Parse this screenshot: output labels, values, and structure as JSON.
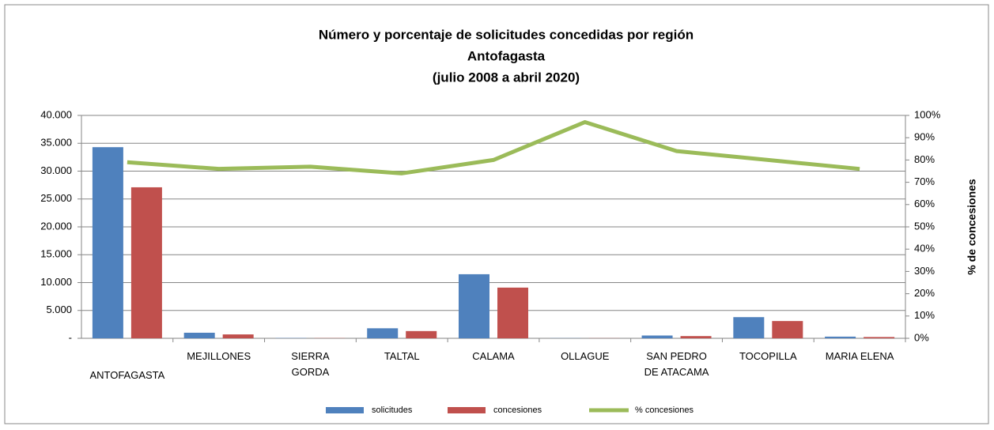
{
  "chart_data": {
    "type": "bar_line",
    "title": [
      "Número y porcentaje de solicitudes concedidas por región",
      "Antofagasta",
      "(julio 2008 a  abril 2020)"
    ],
    "categories": [
      "ANTOFAGASTA",
      "MEJILLONES",
      "SIERRA\nGORDA",
      "TALTAL",
      "CALAMA",
      "OLLAGUE",
      "SAN PEDRO\nDE ATACAMA",
      "TOCOPILLA",
      "MARIA ELENA"
    ],
    "series": [
      {
        "name": "solicitudes",
        "color": "#4f81bd",
        "type": "bar",
        "values": [
          34300,
          1000,
          50,
          1800,
          11500,
          30,
          500,
          3800,
          300
        ]
      },
      {
        "name": "concesiones",
        "color": "#c0504d",
        "type": "bar",
        "values": [
          27100,
          700,
          40,
          1300,
          9100,
          25,
          400,
          3100,
          230
        ]
      },
      {
        "name": "% concesiones",
        "color": "#9bbb59",
        "type": "line",
        "axis": "y2",
        "values": [
          79,
          76,
          77,
          74,
          80,
          97,
          84,
          80,
          76
        ]
      }
    ],
    "ylim": [
      0,
      40000
    ],
    "yticks": [
      {
        "value": 0,
        "label": "-"
      },
      {
        "value": 5000,
        "label": "5.000"
      },
      {
        "value": 10000,
        "label": "10.000"
      },
      {
        "value": 15000,
        "label": "15.000"
      },
      {
        "value": 20000,
        "label": "20.000"
      },
      {
        "value": 25000,
        "label": "25.000"
      },
      {
        "value": 30000,
        "label": "30.000"
      },
      {
        "value": 35000,
        "label": "35.000"
      },
      {
        "value": 40000,
        "label": "40.000"
      }
    ],
    "y2lim": [
      0,
      100
    ],
    "y2ticks": [
      {
        "value": 0,
        "label": "0%"
      },
      {
        "value": 10,
        "label": "10%"
      },
      {
        "value": 20,
        "label": "20%"
      },
      {
        "value": 30,
        "label": "30%"
      },
      {
        "value": 40,
        "label": "40%"
      },
      {
        "value": 50,
        "label": "50%"
      },
      {
        "value": 60,
        "label": "60%"
      },
      {
        "value": 70,
        "label": "70%"
      },
      {
        "value": 80,
        "label": "80%"
      },
      {
        "value": 90,
        "label": "90%"
      },
      {
        "value": 100,
        "label": "100%"
      }
    ],
    "y2label": "% de concesiones",
    "grid": true,
    "legend": "bottom"
  }
}
